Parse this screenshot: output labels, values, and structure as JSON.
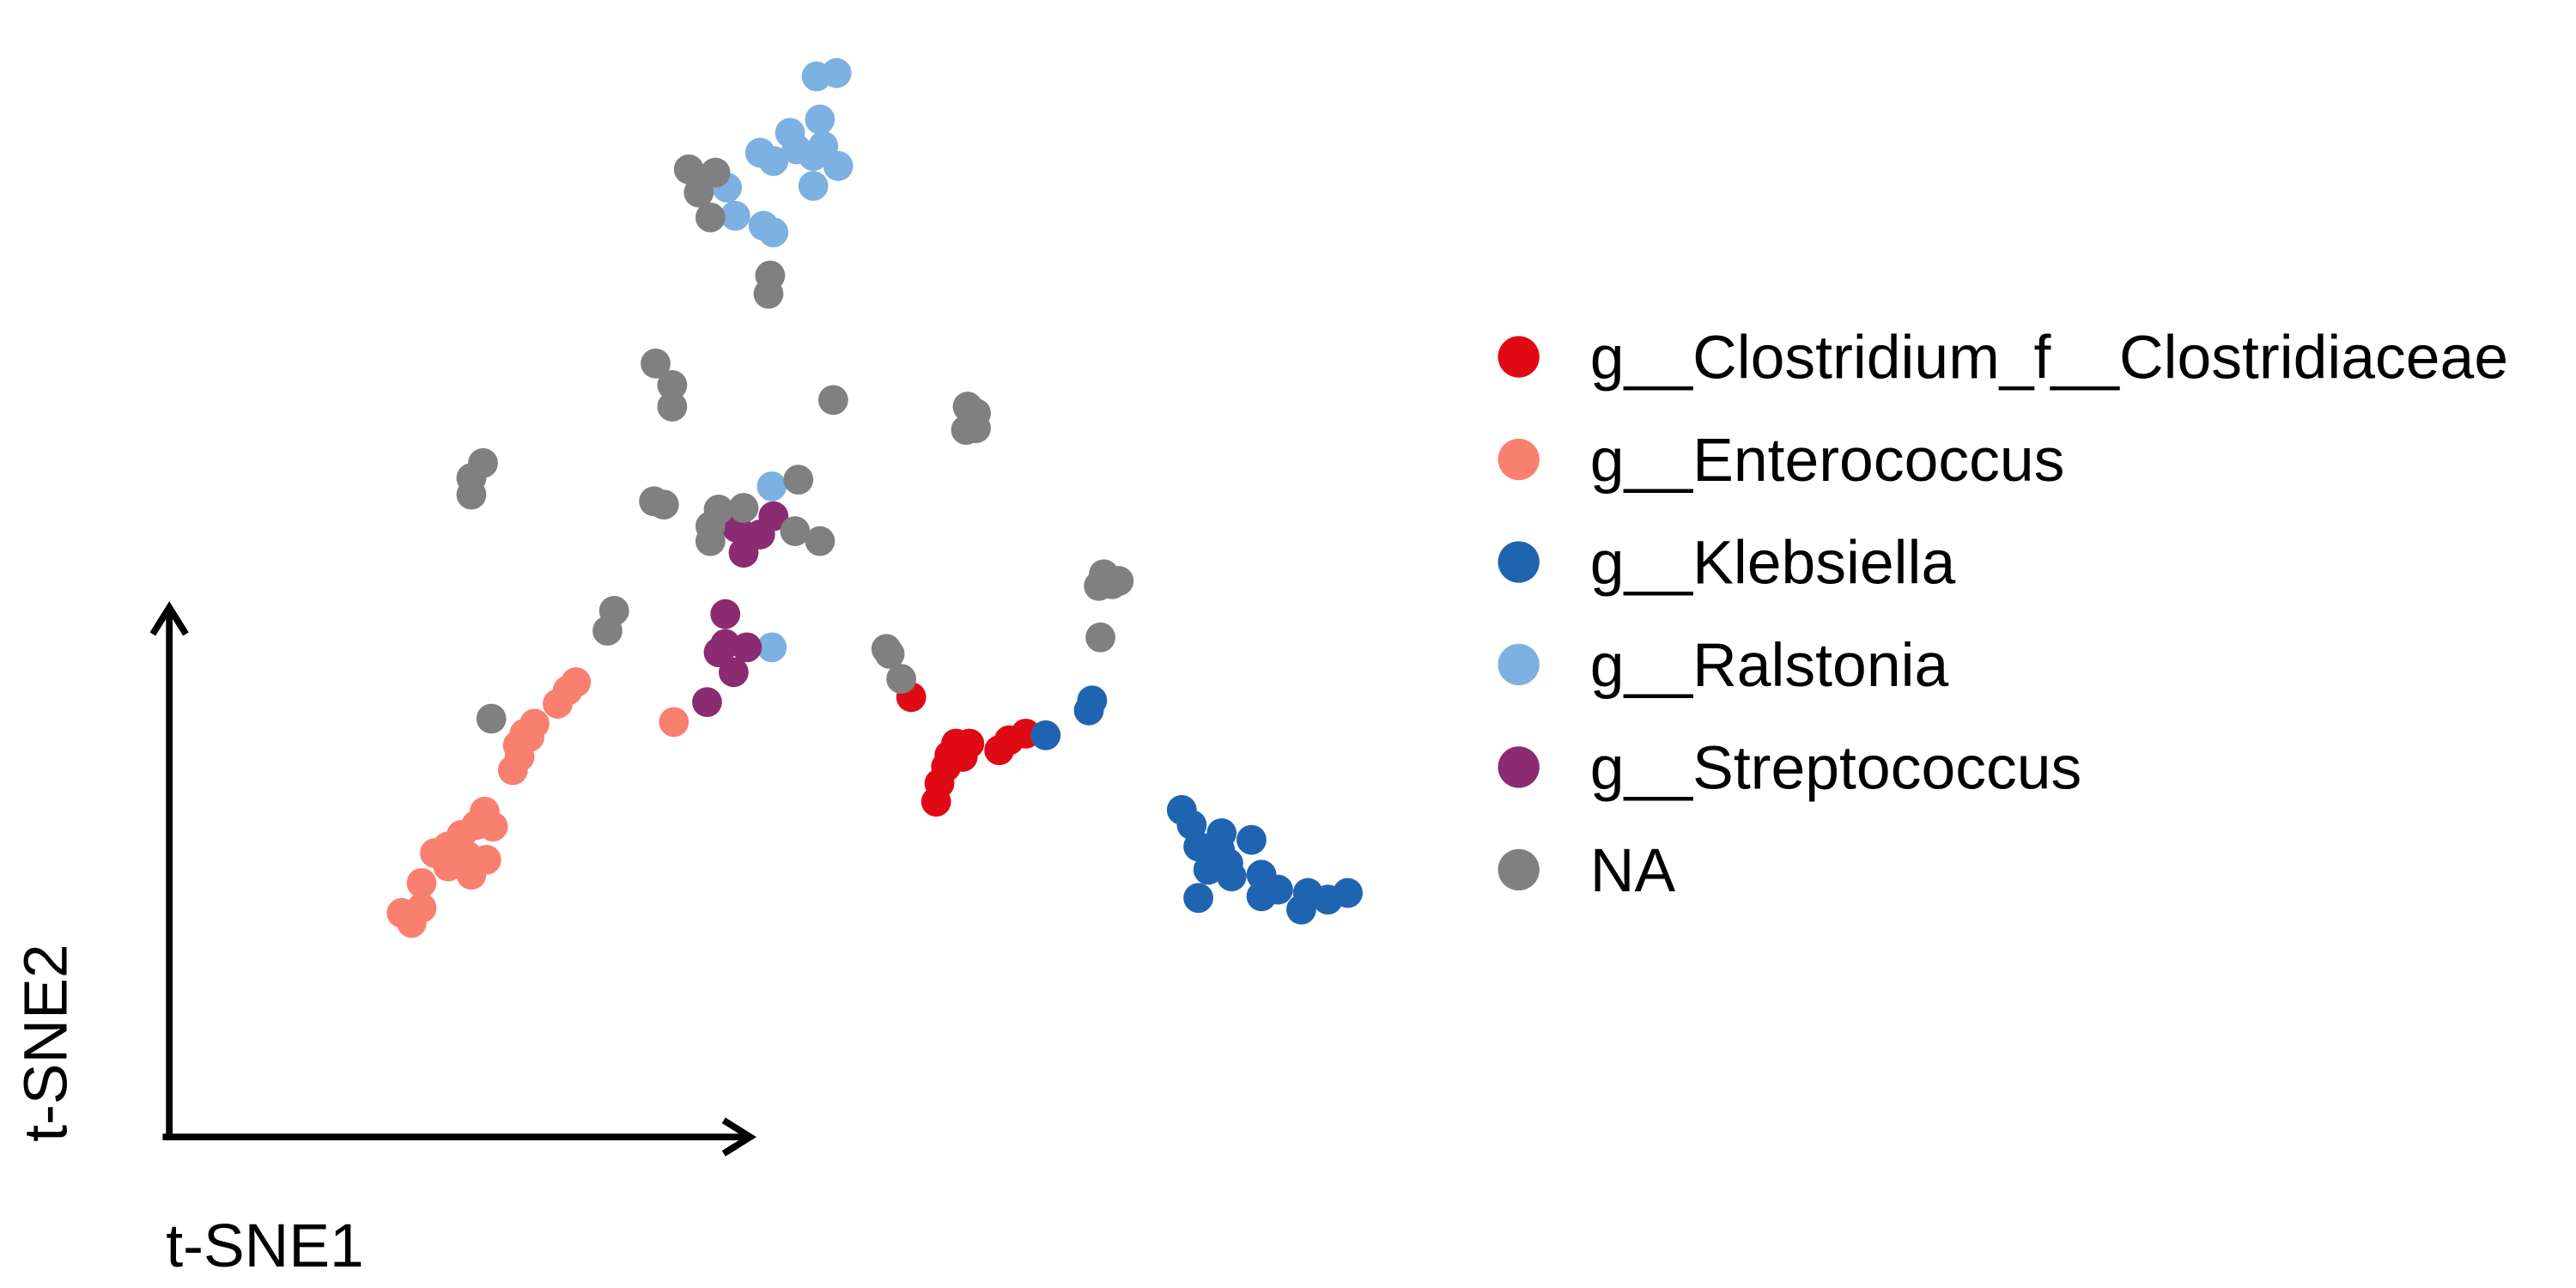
{
  "chart_data": {
    "type": "scatter",
    "x_label": "t-SNE1",
    "y_label": "t-SNE2",
    "xlim": [
      0,
      1552
    ],
    "ylim": [
      0,
      776
    ],
    "legend": "right",
    "series": [
      {
        "name": "g__Clostridium_f__Clostridiaceae",
        "color": "#e00a14",
        "x": [
          549,
          576,
          584,
          580,
          570,
          566,
          564,
          602,
          608,
          618,
          572
        ],
        "y": [
          356,
          328,
          328,
          320,
          314,
          304,
          293,
          324,
          330,
          334,
          321
        ]
      },
      {
        "name": "g__Enterococcus",
        "color": "#f9806f",
        "x": [
          347,
          342,
          336,
          322,
          316,
          312,
          319,
          313,
          309,
          292,
          297,
          287,
          278,
          270,
          262,
          282,
          293,
          284,
          270,
          254,
          254,
          248,
          242,
          406
        ],
        "y": [
          365,
          360,
          352,
          340,
          334,
          327,
          332,
          320,
          312,
          287,
          278,
          279,
          273,
          266,
          262,
          260,
          258,
          249,
          254,
          244,
          229,
          220,
          226,
          341
        ]
      },
      {
        "name": "g__Klebsiella",
        "color": "#1f64b0",
        "x": [
          630,
          658,
          656,
          712,
          718,
          722,
          736,
          754,
          730,
          740,
          728,
          742,
          760,
          770,
          760,
          788,
          800,
          812,
          784,
          722,
          735
        ],
        "y": [
          333,
          354,
          348,
          288,
          279,
          266,
          274,
          270,
          261,
          256,
          252,
          248,
          249,
          240,
          236,
          238,
          234,
          238,
          228,
          235,
          264
        ]
      },
      {
        "name": "g__Ralstonia",
        "color": "#7cb1e1",
        "x": [
          492,
          504,
          494,
          476,
          458,
          466,
          480,
          490,
          496,
          505,
          490,
          438,
          443,
          460,
          466,
          465,
          465
        ],
        "y": [
          730,
          732,
          704,
          696,
          684,
          679,
          686,
          682,
          688,
          676,
          664,
          663,
          646,
          640,
          636,
          483,
          386
        ]
      },
      {
        "name": "g__Streptococcus",
        "color": "#8b2b72",
        "x": [
          466,
          458,
          448,
          444,
          437,
          437,
          450,
          442,
          426,
          433
        ],
        "y": [
          465,
          454,
          443,
          458,
          406,
          388,
          386,
          371,
          353,
          383
        ]
      },
      {
        "name": "NA",
        "color": "#808080",
        "x": [
          415,
          431,
          421,
          428,
          464,
          463,
          395,
          405,
          405,
          502,
          583,
          588,
          582,
          588,
          291,
          284,
          284,
          394,
          400,
          433,
          448,
          428,
          428,
          481,
          479,
          494,
          370,
          366,
          296,
          534,
          536,
          543,
          665,
          670,
          662,
          674,
          663
        ],
        "y": [
          674,
          672,
          660,
          645,
          610,
          599,
          557,
          544,
          531,
          535,
          531,
          527,
          517,
          518,
          497,
          488,
          478,
          474,
          472,
          469,
          470,
          459,
          450,
          487,
          456,
          450,
          408,
          396,
          343,
          385,
          382,
          367,
          430,
          424,
          423,
          426,
          392
        ]
      }
    ]
  }
}
